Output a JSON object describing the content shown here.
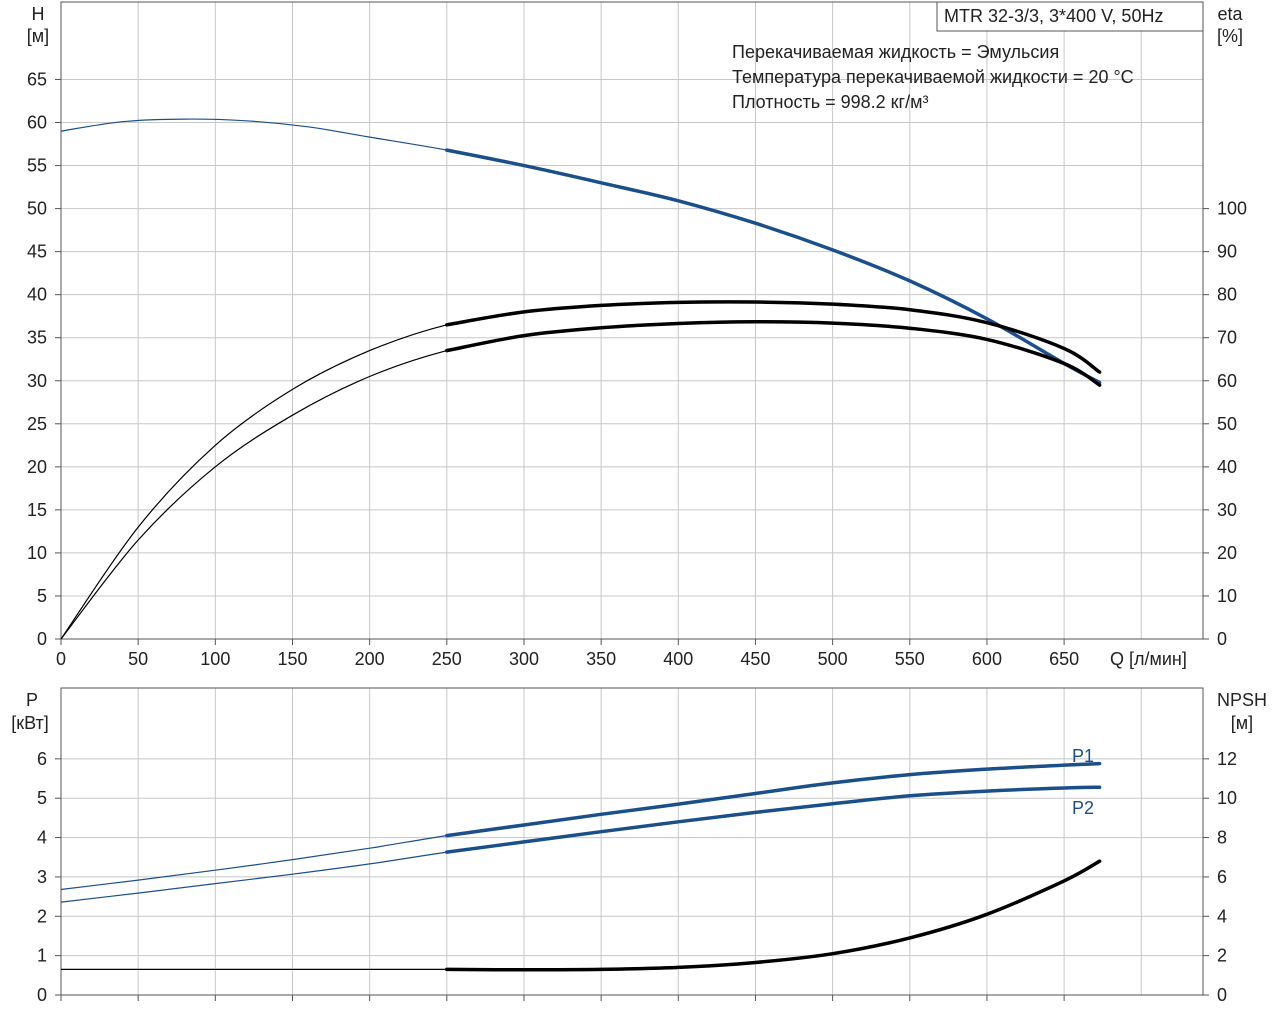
{
  "colors": {
    "head": "#1b4f8a",
    "power": "#1b4f8a",
    "efficiency": "#000000",
    "npsh": "#000000",
    "grid": "#c8c8c8",
    "frame": "#555555"
  },
  "chart_data": [
    {
      "type": "line",
      "id": "head-efficiency",
      "title": "MTR 32-3/3, 3*400 V, 50Hz",
      "info_lines": [
        "Перекачиваемая жидкость = Эмульсия",
        "Температура перекачиваемой жидкости = 20 °C",
        "Плотность = 998.2 кг/м³"
      ],
      "ylabel_left": "H",
      "ylabel_left_unit": "[м]",
      "ylabel_right": "eta",
      "ylabel_right_unit": "[%]",
      "xlabel": "Q [л/мин]",
      "xlim": [
        0,
        740
      ],
      "ylim_left": [
        0,
        74
      ],
      "ylim_right": [
        0,
        148
      ],
      "x_ticks": [
        0,
        50,
        100,
        150,
        200,
        250,
        300,
        350,
        400,
        450,
        500,
        550,
        600,
        650
      ],
      "y_left_ticks": [
        0,
        5,
        10,
        15,
        20,
        25,
        30,
        35,
        40,
        45,
        50,
        55,
        60,
        65
      ],
      "y_right_ticks": [
        0,
        10,
        20,
        30,
        40,
        50,
        60,
        70,
        80,
        90,
        100
      ],
      "grid": true,
      "series": [
        {
          "axis": "left",
          "x": [
            0,
            40,
            80,
            120,
            160,
            200,
            250,
            300,
            350,
            400,
            450,
            500,
            550,
            600,
            650,
            673
          ],
          "y": [
            59.0,
            60.1,
            60.4,
            60.2,
            59.5,
            58.3,
            56.8,
            55.0,
            53.0,
            50.9,
            48.3,
            45.2,
            41.6,
            37.2,
            32.0,
            29.8
          ],
          "bold_from": 250
        },
        {
          "axis": "right",
          "x": [
            0,
            50,
            100,
            150,
            200,
            250,
            300,
            350,
            400,
            450,
            500,
            550,
            600,
            650,
            673
          ],
          "y": [
            0,
            26,
            45,
            58,
            67,
            73,
            76,
            77.5,
            78.2,
            78.3,
            77.8,
            76.5,
            73.5,
            67.5,
            62
          ],
          "bold_from": 250
        },
        {
          "axis": "right",
          "x": [
            0,
            50,
            100,
            150,
            200,
            250,
            300,
            350,
            400,
            450,
            500,
            550,
            600,
            650,
            673
          ],
          "y": [
            0,
            23,
            40,
            52,
            61,
            67,
            70.5,
            72.3,
            73.3,
            73.7,
            73.4,
            72.2,
            69.6,
            64.0,
            59.0
          ],
          "bold_from": 250
        }
      ]
    },
    {
      "type": "line",
      "id": "power-npsh",
      "ylabel_left": "P",
      "ylabel_left_unit": "[кВт]",
      "ylabel_right": "NPSH",
      "ylabel_right_unit": "[м]",
      "xlim": [
        0,
        740
      ],
      "ylim_left": [
        0,
        7.8
      ],
      "ylim_right": [
        0,
        15.6
      ],
      "x_ticks": [
        0,
        50,
        100,
        150,
        200,
        250,
        300,
        350,
        400,
        450,
        500,
        550,
        600,
        650
      ],
      "y_left_ticks": [
        0,
        1,
        2,
        3,
        4,
        5,
        6
      ],
      "y_right_ticks": [
        0,
        2,
        4,
        6,
        8,
        10,
        12
      ],
      "grid": true,
      "series": [
        {
          "name": "P1",
          "axis": "left",
          "x": [
            0,
            50,
            100,
            150,
            200,
            250,
            300,
            350,
            400,
            450,
            500,
            550,
            600,
            650,
            673
          ],
          "y": [
            2.68,
            2.92,
            3.17,
            3.44,
            3.73,
            4.05,
            4.32,
            4.59,
            4.85,
            5.12,
            5.39,
            5.6,
            5.74,
            5.84,
            5.88
          ],
          "bold_from": 250
        },
        {
          "name": "P2",
          "axis": "left",
          "x": [
            0,
            50,
            100,
            150,
            200,
            250,
            300,
            350,
            400,
            450,
            500,
            550,
            600,
            650,
            673
          ],
          "y": [
            2.36,
            2.59,
            2.83,
            3.07,
            3.33,
            3.63,
            3.89,
            4.15,
            4.4,
            4.64,
            4.86,
            5.06,
            5.18,
            5.26,
            5.28
          ],
          "bold_from": 250
        },
        {
          "axis": "right",
          "x": [
            0,
            250,
            300,
            350,
            400,
            450,
            500,
            550,
            600,
            650,
            673
          ],
          "y": [
            1.3,
            1.3,
            1.28,
            1.3,
            1.4,
            1.65,
            2.1,
            2.9,
            4.1,
            5.8,
            6.8
          ],
          "bold_from": 250
        }
      ]
    }
  ]
}
